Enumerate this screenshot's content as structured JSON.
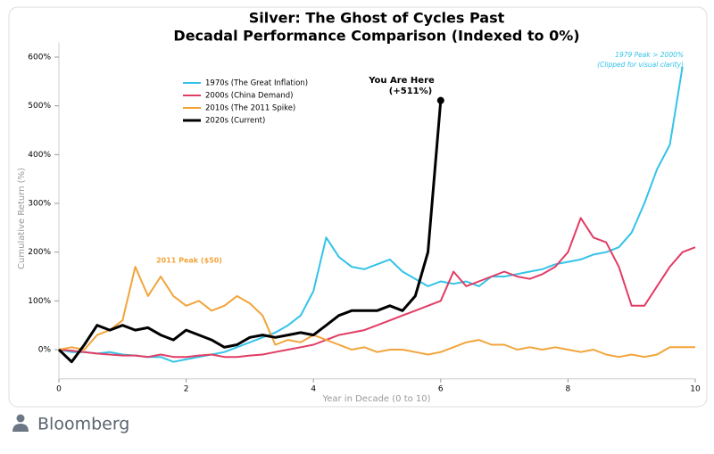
{
  "chart_data": {
    "type": "line",
    "title": [
      "Silver: The Ghost of Cycles Past",
      "Decadal Performance Comparison (Indexed to 0%)"
    ],
    "x_label": "Year in Decade (0 to 10)",
    "y_label": "Cumulative Return (%)",
    "x": [
      0,
      0.2,
      0.4,
      0.6,
      0.8,
      1,
      1.2,
      1.4,
      1.6,
      1.8,
      2,
      2.2,
      2.4,
      2.6,
      2.8,
      3,
      3.2,
      3.4,
      3.6,
      3.8,
      4,
      4.2,
      4.4,
      4.6,
      4.8,
      5,
      5.2,
      5.4,
      5.6,
      5.8,
      6,
      6.2,
      6.4,
      6.6,
      6.8,
      7,
      7.2,
      7.4,
      7.6,
      7.8,
      8,
      8.2,
      8.4,
      8.6,
      8.8,
      9,
      9.2,
      9.4,
      9.6,
      9.8,
      10
    ],
    "series": [
      {
        "name": "1970s (The Great Inflation)",
        "color": "#33c3e8",
        "values": [
          0,
          -5,
          -5,
          -8,
          -5,
          -10,
          -12,
          -15,
          -15,
          -25,
          -20,
          -15,
          -10,
          -5,
          5,
          15,
          25,
          35,
          50,
          70,
          120,
          230,
          190,
          170,
          165,
          175,
          185,
          160,
          145,
          130,
          140,
          135,
          140,
          130,
          150,
          150,
          155,
          160,
          165,
          175,
          180,
          185,
          195,
          200,
          210,
          240,
          300,
          370,
          420,
          580,
          null
        ]
      },
      {
        "name": "2000s (China Demand)",
        "color": "#e23c64",
        "values": [
          0,
          -2,
          -5,
          -8,
          -10,
          -12,
          -12,
          -15,
          -10,
          -15,
          -15,
          -12,
          -10,
          -15,
          -15,
          -12,
          -10,
          -5,
          0,
          5,
          10,
          20,
          30,
          35,
          40,
          50,
          60,
          70,
          80,
          90,
          100,
          160,
          130,
          140,
          150,
          160,
          150,
          145,
          155,
          170,
          200,
          270,
          230,
          220,
          170,
          90,
          90,
          130,
          170,
          200,
          210
        ]
      },
      {
        "name": "2010s (The 2011 Spike)",
        "color": "#f2a43a",
        "values": [
          0,
          5,
          0,
          30,
          40,
          60,
          170,
          110,
          150,
          110,
          90,
          100,
          80,
          90,
          110,
          95,
          70,
          10,
          20,
          15,
          30,
          20,
          10,
          0,
          5,
          -5,
          0,
          0,
          -5,
          -10,
          -5,
          5,
          15,
          20,
          10,
          10,
          0,
          5,
          0,
          5,
          0,
          -5,
          0,
          -10,
          -15,
          -10,
          -15,
          -10,
          5,
          5,
          5
        ]
      },
      {
        "name": "2020s (Current)",
        "color": "#000000",
        "values": [
          0,
          -25,
          10,
          50,
          40,
          50,
          40,
          45,
          30,
          20,
          40,
          30,
          20,
          5,
          10,
          25,
          30,
          25,
          30,
          35,
          30,
          50,
          70,
          80,
          80,
          80,
          90,
          80,
          110,
          200,
          511,
          null,
          null,
          null,
          null,
          null,
          null,
          null,
          null,
          null,
          null,
          null,
          null,
          null,
          null,
          null,
          null,
          null,
          null,
          null,
          null
        ]
      }
    ],
    "xlim": [
      0,
      10
    ],
    "xticks": [
      0,
      2,
      4,
      6,
      8,
      10
    ],
    "ylim": [
      -60,
      630
    ],
    "yticks": [
      {
        "value": 0,
        "label": "0%"
      },
      {
        "value": 100,
        "label": "100%"
      },
      {
        "value": 200,
        "label": "200%"
      },
      {
        "value": 300,
        "label": "300%"
      },
      {
        "value": 400,
        "label": "400%"
      },
      {
        "value": 500,
        "label": "500%"
      },
      {
        "value": 600,
        "label": "600%"
      }
    ],
    "grid": false,
    "legend": "upper left",
    "annotations": [
      "You Are Here",
      "(+511%)",
      "2011 Peak ($50)",
      "1979 Peak > 2000%",
      "(Clipped for visual clarity)"
    ]
  },
  "footer": {
    "source": "Bloomberg"
  }
}
